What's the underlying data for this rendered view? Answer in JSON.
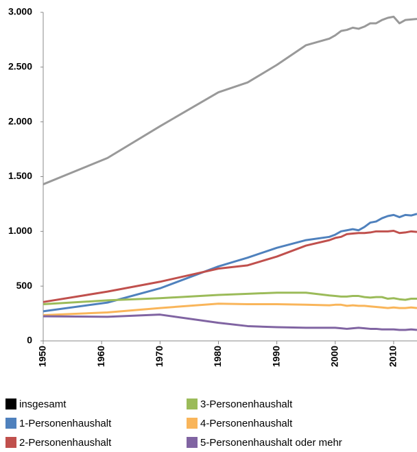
{
  "chart_data": {
    "type": "line",
    "x": [
      1950,
      1961,
      1970,
      1980,
      1985,
      1990,
      1995,
      1999,
      2000,
      2001,
      2002,
      2003,
      2004,
      2005,
      2006,
      2007,
      2008,
      2009,
      2010,
      2011,
      2012,
      2013,
      2014
    ],
    "series": [
      {
        "name": "insgesamt",
        "color": "#999999",
        "legend_color": "#000000",
        "values": [
          1430,
          1670,
          1960,
          2270,
          2360,
          2520,
          2700,
          2760,
          2790,
          2830,
          2840,
          2860,
          2850,
          2870,
          2900,
          2900,
          2930,
          2950,
          2960,
          2900,
          2930,
          2935,
          2940
        ]
      },
      {
        "name": "1-Personenhaushalt",
        "color": "#4f81bd",
        "values": [
          270,
          350,
          480,
          680,
          760,
          850,
          920,
          950,
          970,
          1000,
          1010,
          1020,
          1010,
          1040,
          1080,
          1090,
          1120,
          1140,
          1150,
          1130,
          1150,
          1145,
          1160
        ]
      },
      {
        "name": "2-Personenhaushalt",
        "color": "#c0504d",
        "values": [
          355,
          450,
          540,
          660,
          690,
          770,
          870,
          920,
          940,
          950,
          975,
          980,
          985,
          985,
          990,
          1000,
          1000,
          1000,
          1005,
          985,
          990,
          1000,
          995
        ]
      },
      {
        "name": "3-Personenhaushalt",
        "color": "#9bbb59",
        "values": [
          335,
          370,
          390,
          420,
          430,
          440,
          440,
          415,
          410,
          405,
          405,
          410,
          410,
          400,
          395,
          400,
          400,
          385,
          390,
          380,
          375,
          385,
          385
        ]
      },
      {
        "name": "4-Personenhaushalt",
        "color": "#f9b55a",
        "values": [
          235,
          260,
          300,
          340,
          335,
          335,
          330,
          325,
          330,
          330,
          320,
          325,
          320,
          320,
          315,
          310,
          305,
          300,
          305,
          300,
          300,
          305,
          300
        ]
      },
      {
        "name": "5-Personenhaushalt oder mehr",
        "color": "#8064a2",
        "values": [
          225,
          220,
          240,
          165,
          135,
          125,
          120,
          120,
          120,
          115,
          110,
          115,
          120,
          115,
          110,
          110,
          105,
          105,
          105,
          100,
          100,
          105,
          100
        ]
      }
    ],
    "xlim": [
      1950,
      2014
    ],
    "xticks": [
      1950,
      1960,
      1970,
      1980,
      1990,
      2000,
      2010
    ],
    "ylim": [
      0,
      3000
    ],
    "yticks": [
      0,
      500,
      {
        "value": 1000,
        "label": "1.000"
      },
      {
        "value": 1500,
        "label": "1.500"
      },
      {
        "value": 2000,
        "label": "2.000"
      },
      {
        "value": 2500,
        "label": "2.500"
      },
      {
        "value": 3000,
        "label": "3.000"
      }
    ],
    "grid": false
  }
}
